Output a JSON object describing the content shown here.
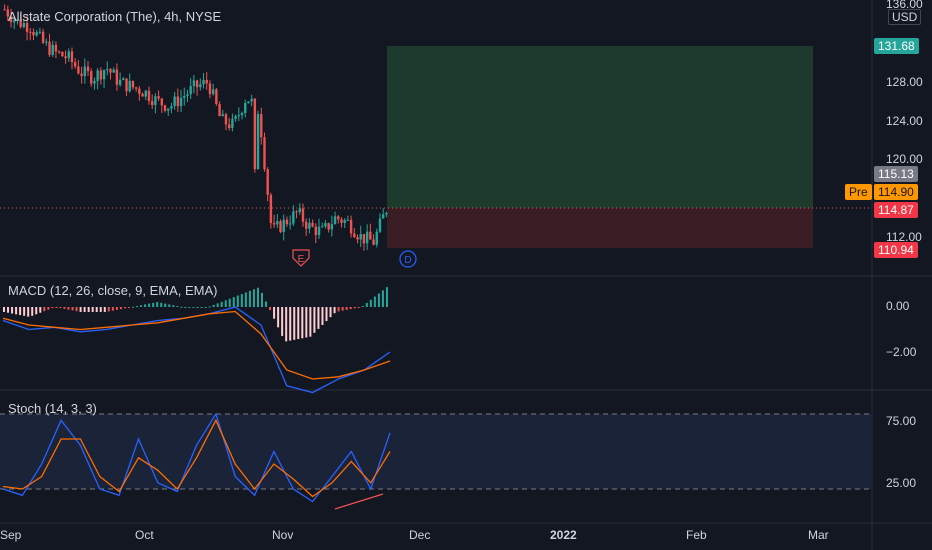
{
  "header": {
    "symbol_title": "Allstate Corporation (The), 4h, NYSE",
    "currency": "USD"
  },
  "price_axis": {
    "ticks": [
      "136.00",
      "128.00",
      "124.00",
      "120.00",
      "112.00"
    ],
    "badges": [
      {
        "label": "131.68",
        "bg": "#26a69a",
        "fg": "#ffffff"
      },
      {
        "label": "115.13",
        "bg": "#787b86",
        "fg": "#ffffff"
      },
      {
        "label": "114.90",
        "bg": "#ff9800",
        "fg": "#131722",
        "tag": "Pre"
      },
      {
        "label": "114.87",
        "bg": "#f23645",
        "fg": "#ffffff"
      },
      {
        "label": "110.94",
        "bg": "#f23645",
        "fg": "#ffffff"
      }
    ]
  },
  "macd_panel": {
    "title": "MACD (12, 26, close, 9, EMA, EMA)",
    "ticks": [
      "0.00",
      "−2.00"
    ]
  },
  "stoch_panel": {
    "title": "Stoch (14, 3, 3)",
    "ticks": [
      "75.00",
      "25.00"
    ]
  },
  "time_axis": [
    "Sep",
    "Oct",
    "Nov",
    "Dec",
    "2022",
    "Feb",
    "Mar"
  ],
  "markers": {
    "earnings": "E",
    "dividend": "D"
  },
  "colors": {
    "up": "#26a69a",
    "down": "#ef5350",
    "background": "#131722",
    "profit_zone": "#1f3d2e",
    "loss_zone": "#3f1f26",
    "macd_line": "#2962ff",
    "signal_line": "#ff6d00",
    "stoch_k": "#2962ff",
    "stoch_d": "#ff6d00"
  },
  "chart_data": {
    "type": "candlestick",
    "interval": "4h",
    "close_path": [
      135.5,
      134.2,
      133.8,
      132.0,
      131.0,
      130.5,
      129.0,
      128.5,
      129.5,
      128.0,
      127.5,
      127.0,
      126.0,
      125.5,
      126.5,
      127.5,
      128.0,
      124.0,
      123.5,
      126.5,
      125.0,
      112.5,
      113.5,
      114.5,
      113.0,
      112.5,
      114.0,
      113.5,
      112.0,
      111.5,
      114.9
    ],
    "position": {
      "target": 131.68,
      "entry": 114.87,
      "stop": 110.94
    },
    "last_price": 115.13,
    "pre_market": 114.9,
    "macd": {
      "macd_line": [
        -0.6,
        -1.0,
        -0.9,
        -1.1,
        -1.0,
        -0.8,
        -0.6,
        -0.5,
        -0.3,
        0.0,
        -0.8,
        -3.5,
        -3.8,
        -3.2,
        -2.8,
        -2.0
      ],
      "signal_line": [
        -0.5,
        -0.8,
        -0.9,
        -1.0,
        -0.9,
        -0.8,
        -0.7,
        -0.5,
        -0.3,
        -0.2,
        -1.2,
        -2.8,
        -3.2,
        -3.1,
        -2.8,
        -2.4
      ]
    },
    "stochastic": {
      "k": [
        20,
        15,
        40,
        75,
        55,
        20,
        15,
        60,
        25,
        18,
        55,
        80,
        30,
        15,
        50,
        20,
        10,
        30,
        50,
        20,
        65
      ],
      "d": [
        22,
        20,
        30,
        60,
        60,
        30,
        18,
        45,
        35,
        20,
        45,
        75,
        40,
        20,
        40,
        28,
        14,
        25,
        42,
        25,
        50
      ],
      "upper_band": 80,
      "lower_band": 20
    }
  }
}
